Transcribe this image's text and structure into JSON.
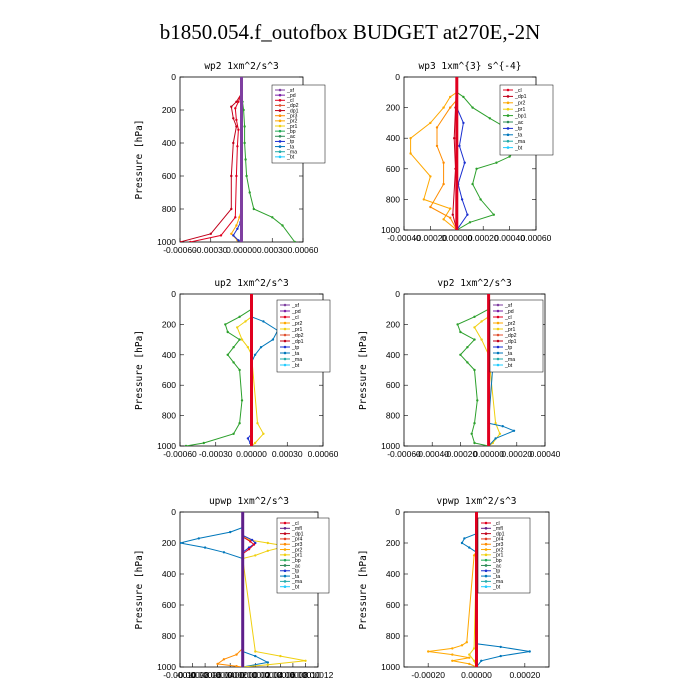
{
  "title": "b1850.054.f_outofbox  BUDGET at270E,-2N",
  "colors": {
    "sf": "#7f3fa0",
    "pd": "#7a1fa6",
    "mfl": "#5e1f8a",
    "cl": "#e0001f",
    "dp1": "#c0001a",
    "dp2": "#e05030",
    "pr1": "#f0d010",
    "pr2": "#ffa800",
    "pr3": "#ff8c00",
    "pr4": "#e03a20",
    "bp1": "#2ca02c",
    "bp": "#22aa55",
    "ac": "#2e8b57",
    "tp": "#1a2fd0",
    "ta": "#0077bb",
    "ma": "#22aaaa",
    "bt": "#22ccff"
  },
  "chart_data": [
    {
      "type": "line",
      "title": "wp2  1xm^2/s^3",
      "ylabel": "Pressure [hPa]",
      "xlim": [
        -0.0006,
        0.0006
      ],
      "ylim": [
        1000,
        0
      ],
      "xticks": [
        "-0.00060",
        "-0.00030",
        "0.00000",
        "0.00030",
        "0.00060"
      ],
      "xtick_values": [
        -0.0006,
        -0.0003,
        0,
        0.0003,
        0.0006
      ],
      "yticks": [
        0,
        200,
        400,
        600,
        800,
        1000
      ],
      "legend": [
        "_sf",
        "_pd",
        "_cl",
        "_dp2",
        "_dp1",
        "_pr3",
        "_pr2",
        "_pr1",
        "_bp",
        "_ac",
        "_tp",
        "_ta",
        "_ma",
        "_bt"
      ],
      "series": [
        {
          "name": "_pr1",
          "color_key": "bp1",
          "x": [
            0,
            1e-05,
            2e-05,
            3e-05,
            3e-05,
            4e-05,
            5e-05,
            8e-05,
            0.00012,
            0.0003,
            0.0004,
            0.00052
          ],
          "y": [
            100,
            150,
            200,
            300,
            400,
            500,
            600,
            700,
            800,
            850,
            900,
            1000
          ]
        },
        {
          "name": "_dp1",
          "color_key": "dp1",
          "x": [
            0,
            -5e-05,
            -0.0001,
            -8e-05,
            -5e-05,
            -8e-05,
            -0.0001,
            -0.0001,
            -0.0003,
            -0.0006
          ],
          "y": [
            100,
            150,
            180,
            250,
            300,
            400,
            600,
            800,
            950,
            1000
          ]
        },
        {
          "name": "_cl",
          "color_key": "cl",
          "x": [
            0,
            -3e-05,
            -6e-05,
            -5e-05,
            -3e-05,
            -4e-05,
            -5e-05,
            -6e-05,
            -0.0002,
            -0.0005
          ],
          "y": [
            100,
            150,
            190,
            260,
            320,
            420,
            600,
            850,
            960,
            1000
          ]
        },
        {
          "name": "_pr3",
          "color_key": "pr2",
          "x": [
            0,
            -2e-05,
            -5e-05,
            -0.0001,
            -4e-05,
            0
          ],
          "y": [
            800,
            850,
            900,
            950,
            990,
            1000
          ]
        },
        {
          "name": "_tp",
          "color_key": "tp",
          "x": [
            0,
            -1e-05,
            -4e-05,
            -8e-05,
            -3e-05,
            0
          ],
          "y": [
            800,
            880,
            920,
            960,
            990,
            1000
          ]
        },
        {
          "name": "_bt",
          "color_key": "bt",
          "x": [
            0,
            0,
            0,
            0,
            0,
            0
          ],
          "y": [
            0,
            200,
            400,
            600,
            800,
            1000
          ]
        },
        {
          "name": "_sf",
          "color_key": "sf",
          "x": [
            0,
            0,
            0,
            0,
            0,
            0
          ],
          "y": [
            0,
            200,
            400,
            600,
            800,
            1000
          ]
        }
      ]
    },
    {
      "type": "line",
      "title": "wp3  1xm^{3} s^{-4}",
      "ylabel": "",
      "xlim": [
        -0.0004,
        0.0006
      ],
      "ylim": [
        1000,
        0
      ],
      "xticks": [
        "-0.00040",
        "-0.00020",
        "0.00000",
        "0.00020",
        "0.00040",
        "0.00060"
      ],
      "xtick_values": [
        -0.0004,
        -0.0002,
        0,
        0.0002,
        0.0004,
        0.0006
      ],
      "yticks": [
        0,
        200,
        400,
        600,
        800,
        1000
      ],
      "legend": [
        "_cl",
        "_dp1",
        "_pr2",
        "_pr1",
        "_bp1",
        "_ac",
        "_tp",
        "_ta",
        "_ma",
        "_bt"
      ],
      "series": [
        {
          "name": "_bp1",
          "color_key": "bp1",
          "x": [
            0,
            5e-05,
            0.00012,
            0.00025,
            0.00035,
            0.00047,
            0.0004,
            0.0003,
            0.00015,
            0.00012,
            0.00018,
            0.00028,
            0.0001,
            0
          ],
          "y": [
            100,
            130,
            200,
            270,
            320,
            450,
            520,
            560,
            600,
            700,
            800,
            900,
            950,
            1000
          ]
        },
        {
          "name": "_pr2",
          "color_key": "pr2",
          "x": [
            0,
            -5e-05,
            -0.0001,
            -0.0002,
            -0.00035,
            -0.00035,
            -0.0002,
            -0.00025,
            -5e-05,
            -0.0001,
            0
          ],
          "y": [
            100,
            130,
            200,
            300,
            400,
            500,
            650,
            800,
            860,
            930,
            1000
          ]
        },
        {
          "name": "_pr1",
          "color_key": "pr3",
          "x": [
            0,
            -5e-05,
            -0.00015,
            -0.00015,
            -0.0001,
            -0.0001,
            -0.0002,
            -5e-05,
            0
          ],
          "y": [
            150,
            200,
            330,
            450,
            560,
            700,
            850,
            920,
            1000
          ]
        },
        {
          "name": "_tp",
          "color_key": "tp",
          "x": [
            0,
            5e-05,
            2e-05,
            6e-05,
            1e-05,
            4e-05,
            8e-05,
            0
          ],
          "y": [
            200,
            300,
            450,
            560,
            700,
            800,
            900,
            1000
          ]
        },
        {
          "name": "_dp1",
          "color_key": "dp1",
          "x": [
            0,
            -1e-05,
            -2e-05,
            -1e-05,
            -3e-05,
            0
          ],
          "y": [
            0,
            200,
            400,
            600,
            900,
            1000
          ]
        },
        {
          "name": "_cl",
          "color_key": "cl",
          "x": [
            0,
            0,
            0,
            0,
            0,
            0
          ],
          "y": [
            0,
            200,
            400,
            600,
            800,
            1000
          ]
        }
      ]
    },
    {
      "type": "line",
      "title": "up2  1xm^2/s^3",
      "ylabel": "Pressure [hPa]",
      "xlim": [
        -0.0006,
        0.0006
      ],
      "ylim": [
        1000,
        0
      ],
      "xticks": [
        "-0.00060",
        "-0.00030",
        "0.00000",
        "0.00030",
        "0.00060"
      ],
      "xtick_values": [
        -0.0006,
        -0.0003,
        0,
        0.0003,
        0.0006
      ],
      "yticks": [
        0,
        200,
        400,
        600,
        800,
        1000
      ],
      "legend": [
        "_sf",
        "_pd",
        "_cl",
        "_pr2",
        "_pr1",
        "_dp2",
        "_dp1",
        "_tp",
        "_ta",
        "_ma",
        "_bt"
      ],
      "series": [
        {
          "name": "_dp1",
          "color_key": "bp1",
          "x": [
            0,
            -0.0001,
            -0.00022,
            -0.0002,
            -0.0001,
            -0.00015,
            -0.0002,
            -0.00015,
            -0.0001,
            -8e-05,
            -0.0001,
            -0.00015,
            -0.0004,
            -0.00055
          ],
          "y": [
            100,
            150,
            200,
            250,
            300,
            350,
            400,
            450,
            500,
            700,
            850,
            920,
            980,
            1000
          ]
        },
        {
          "name": "_pr2",
          "color_key": "pr1",
          "x": [
            0,
            -5e-05,
            -0.00012,
            -8e-05,
            -3e-05,
            0,
            5e-05,
            0.0001,
            3e-05,
            0
          ],
          "y": [
            150,
            180,
            220,
            300,
            350,
            400,
            850,
            920,
            980,
            1000
          ]
        },
        {
          "name": "_tp",
          "color_key": "ta",
          "x": [
            0,
            0.0001,
            0.00022,
            0.00018,
            8e-05,
            3e-05,
            0
          ],
          "y": [
            150,
            180,
            240,
            300,
            350,
            400,
            450
          ]
        },
        {
          "name": "_ta",
          "color_key": "tp",
          "x": [
            0,
            -3e-05,
            -1e-05,
            0
          ],
          "y": [
            920,
            950,
            980,
            1000
          ]
        },
        {
          "name": "_cl",
          "color_key": "cl",
          "x": [
            0,
            0,
            0,
            0,
            0,
            0
          ],
          "y": [
            0,
            200,
            400,
            600,
            800,
            1000
          ]
        }
      ]
    },
    {
      "type": "line",
      "title": "vp2  1xm^2/s^3",
      "ylabel": "Pressure [hPa]",
      "xlim": [
        -0.0006,
        0.0004
      ],
      "ylim": [
        1000,
        0
      ],
      "xticks": [
        "-0.00060",
        "-0.00040",
        "-0.00020",
        "0.00000",
        "0.00020",
        "0.00040"
      ],
      "xtick_values": [
        -0.0006,
        -0.0004,
        -0.0002,
        0,
        0.0002,
        0.0004
      ],
      "yticks": [
        0,
        200,
        400,
        600,
        800,
        1000
      ],
      "legend": [
        "_sf",
        "_pd",
        "_cl",
        "_pr2",
        "_pr1",
        "_dp2",
        "_dp1",
        "_tp",
        "_ta",
        "_ma",
        "_bt"
      ],
      "series": [
        {
          "name": "_dp1",
          "color_key": "bp1",
          "x": [
            0,
            -0.0001,
            -0.00022,
            -0.0002,
            -0.0001,
            -0.00015,
            -0.0002,
            -0.00015,
            -0.0001,
            -8e-05,
            -0.0001,
            -0.00012,
            -0.0001,
            0
          ],
          "y": [
            100,
            150,
            200,
            250,
            300,
            350,
            400,
            450,
            500,
            700,
            850,
            920,
            980,
            1000
          ]
        },
        {
          "name": "_pr2",
          "color_key": "pr1",
          "x": [
            0,
            -5e-05,
            -0.0001,
            -5e-05,
            0,
            5e-05,
            8e-05,
            3e-05,
            0
          ],
          "y": [
            150,
            180,
            220,
            300,
            400,
            850,
            920,
            980,
            1000
          ]
        },
        {
          "name": "_tp",
          "color_key": "ta",
          "x": [
            0,
            5e-05,
            0.00016,
            0.00012,
            4e-05,
            0,
            0.0001,
            0.00018,
            5e-05,
            0
          ],
          "y": [
            150,
            180,
            240,
            300,
            350,
            850,
            870,
            900,
            950,
            1000
          ]
        },
        {
          "name": "_cl",
          "color_key": "cl",
          "x": [
            0,
            0,
            0,
            0,
            0,
            0
          ],
          "y": [
            0,
            200,
            400,
            600,
            800,
            1000
          ]
        }
      ]
    },
    {
      "type": "line",
      "title": "upwp  1xm^2/s^3",
      "ylabel": "Pressure [hPa]",
      "xlim": [
        -0.0001,
        0.00012
      ],
      "ylim": [
        1000,
        0
      ],
      "xticks": [
        "-0.00010",
        "-0.00008",
        "-0.00006",
        "-0.00004",
        "-0.00002",
        "0.00000",
        "0.00002",
        "0.00004",
        "0.00006",
        "0.00008",
        "0.00010",
        "0.00012"
      ],
      "xtick_values": [
        -0.0001,
        -8e-05,
        -6e-05,
        -4e-05,
        -2e-05,
        0,
        2e-05,
        4e-05,
        6e-05,
        8e-05,
        0.0001,
        0.00012
      ],
      "yticks": [
        0,
        200,
        400,
        600,
        800,
        1000
      ],
      "legend": [
        "_cl",
        "_mfl",
        "_dp1",
        "_pr4",
        "_pr3",
        "_pr2",
        "_pr1",
        "_bp",
        "_ac",
        "_tp",
        "_ta",
        "_ma",
        "_bt"
      ],
      "series": [
        {
          "name": "_ta",
          "color_key": "ta",
          "x": [
            0,
            -2e-05,
            -7e-05,
            -0.0001,
            -6e-05,
            -3e-05,
            0,
            0,
            2e-05,
            4e-05,
            0
          ],
          "y": [
            100,
            130,
            170,
            200,
            230,
            260,
            300,
            900,
            930,
            970,
            1000
          ]
        },
        {
          "name": "_pr2",
          "color_key": "pr1",
          "x": [
            0,
            1e-05,
            4e-05,
            7e-05,
            4e-05,
            2e-05,
            0,
            2e-05,
            6e-05,
            0.0001,
            4e-05,
            0
          ],
          "y": [
            150,
            180,
            200,
            220,
            250,
            280,
            300,
            900,
            930,
            960,
            985,
            1000
          ]
        },
        {
          "name": "_pr3",
          "color_key": "pr3",
          "x": [
            0,
            -1e-05,
            -3e-05,
            -4e-05,
            -1e-05,
            0
          ],
          "y": [
            880,
            920,
            950,
            980,
            995,
            1000
          ]
        },
        {
          "name": "_tp",
          "color_key": "tp",
          "x": [
            0,
            1.5e-05,
            2e-05,
            1e-05,
            0
          ],
          "y": [
            150,
            180,
            200,
            230,
            260
          ]
        },
        {
          "name": "_cl",
          "color_key": "cl",
          "x": [
            0,
            1.2e-05,
            1.8e-05,
            1e-05,
            0
          ],
          "y": [
            160,
            190,
            210,
            240,
            270
          ]
        },
        {
          "name": "_mfl",
          "color_key": "mfl",
          "x": [
            0,
            0,
            0,
            0,
            0,
            0
          ],
          "y": [
            0,
            200,
            400,
            600,
            800,
            1000
          ]
        }
      ]
    },
    {
      "type": "line",
      "title": "vpwp  1xm^2/s^3",
      "ylabel": "Pressure [hPa]",
      "xlim": [
        -0.0003,
        0.0003
      ],
      "ylim": [
        1000,
        0
      ],
      "xticks": [
        "-0.00020",
        "0.00000",
        "0.00020"
      ],
      "xtick_values": [
        -0.0002,
        0,
        0.0002
      ],
      "yticks": [
        0,
        200,
        400,
        600,
        800,
        1000
      ],
      "legend": [
        "_cl",
        "_mfl",
        "_dp1",
        "_pr4",
        "_pr3",
        "_pr2",
        "_pr1",
        "_bp",
        "_ac",
        "_tp",
        "_ta",
        "_ma",
        "_bt"
      ],
      "series": [
        {
          "name": "_pr1",
          "color_key": "pr2",
          "x": [
            0,
            2e-05,
            4e-05,
            2e-05,
            0,
            -1e-05,
            -4e-05,
            -6e-05,
            -0.0001,
            -0.0002,
            -0.0001,
            -3e-05,
            -0.0001,
            -3e-05,
            0
          ],
          "y": [
            130,
            160,
            190,
            220,
            250,
            280,
            840,
            860,
            880,
            900,
            920,
            940,
            960,
            980,
            1000
          ]
        },
        {
          "name": "_ta",
          "color_key": "ta",
          "x": [
            0,
            -5e-05,
            -6e-05,
            -3e-05,
            0,
            0,
            0.0001,
            0.00022,
            0.0001,
            2e-05,
            0
          ],
          "y": [
            140,
            170,
            200,
            230,
            260,
            850,
            870,
            900,
            930,
            960,
            1000
          ]
        },
        {
          "name": "_pr2",
          "color_key": "pr1",
          "x": [
            0,
            1e-05,
            3e-05,
            1e-05,
            0,
            -1e-05,
            -3e-05,
            -1e-05,
            0
          ],
          "y": [
            150,
            180,
            210,
            240,
            260,
            880,
            920,
            960,
            1000
          ]
        },
        {
          "name": "_cl",
          "color_key": "cl",
          "x": [
            0,
            0,
            0,
            0,
            0,
            0
          ],
          "y": [
            0,
            200,
            400,
            600,
            800,
            1000
          ]
        }
      ]
    }
  ]
}
